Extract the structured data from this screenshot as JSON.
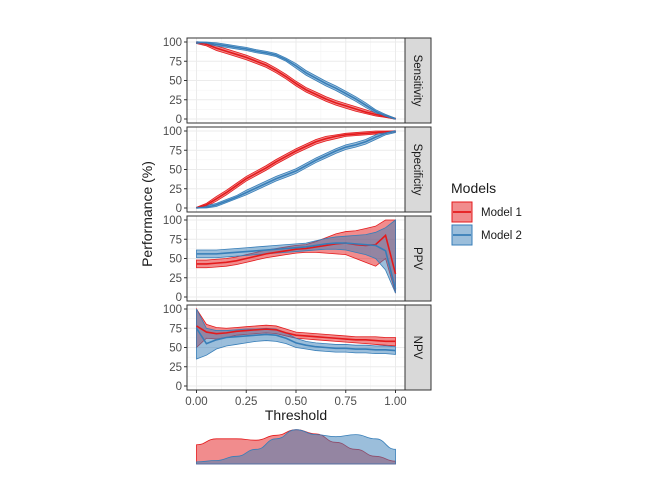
{
  "chart_data": {
    "type": "line",
    "xlabel": "Threshold",
    "ylabel": "Performance (%)",
    "xlim": [
      0,
      1
    ],
    "ylim": [
      0,
      100
    ],
    "x_ticks": [
      "0.00",
      "0.25",
      "0.50",
      "0.75",
      "1.00"
    ],
    "y_ticks": [
      "0",
      "25",
      "50",
      "75",
      "100"
    ],
    "legend": {
      "title": "Models",
      "entries": [
        {
          "name": "Model 1",
          "color": "#e41a1c"
        },
        {
          "name": "Model 2",
          "color": "#377eb8"
        }
      ]
    },
    "x": [
      0,
      0.05,
      0.1,
      0.15,
      0.2,
      0.25,
      0.3,
      0.35,
      0.4,
      0.45,
      0.5,
      0.55,
      0.6,
      0.65,
      0.7,
      0.75,
      0.8,
      0.85,
      0.9,
      0.95,
      1.0
    ],
    "panels": [
      {
        "name": "Sensitivity",
        "series": [
          {
            "name": "Model 1",
            "values": [
              100,
              97,
              92,
              88,
              84,
              80,
              75,
              70,
              63,
              55,
              46,
              38,
              32,
              26,
              21,
              17,
              13,
              9,
              6,
              3,
              0
            ],
            "lower": [
              98,
              95,
              89,
              85,
              81,
              77,
              72,
              67,
              60,
              52,
              43,
              35,
              29,
              23,
              18,
              14,
              10,
              7,
              4,
              2,
              0
            ],
            "upper": [
              100,
              99,
              95,
              91,
              87,
              83,
              78,
              73,
              66,
              58,
              49,
              41,
              35,
              29,
              24,
              20,
              16,
              12,
              8,
              5,
              1
            ]
          },
          {
            "name": "Model 2",
            "values": [
              100,
              99,
              97,
              95,
              93,
              91,
              88,
              86,
              83,
              77,
              69,
              60,
              53,
              46,
              40,
              33,
              26,
              18,
              10,
              4,
              0
            ],
            "lower": [
              98,
              97,
              95,
              93,
              91,
              89,
              86,
              84,
              81,
              75,
              66,
              57,
              50,
              43,
              37,
              30,
              23,
              15,
              8,
              3,
              0
            ],
            "upper": [
              100,
              100,
              99,
              97,
              95,
              93,
              90,
              88,
              85,
              79,
              72,
              63,
              56,
              49,
              43,
              36,
              29,
              21,
              12,
              6,
              1
            ]
          }
        ]
      },
      {
        "name": "Specificity",
        "series": [
          {
            "name": "Model 1",
            "values": [
              0,
              4,
              12,
              20,
              29,
              38,
              45,
              52,
              60,
              67,
              74,
              80,
              86,
              90,
              93,
              95,
              96,
              97,
              98,
              99,
              100
            ],
            "lower": [
              0,
              2,
              9,
              17,
              26,
              35,
              42,
              49,
              57,
              64,
              71,
              77,
              83,
              87,
              90,
              93,
              94,
              95,
              96,
              97,
              99
            ],
            "upper": [
              1,
              6,
              15,
              23,
              32,
              41,
              48,
              55,
              63,
              70,
              77,
              83,
              89,
              93,
              95,
              97,
              98,
              99,
              100,
              100,
              100
            ]
          },
          {
            "name": "Model 2",
            "values": [
              0,
              1,
              4,
              9,
              14,
              20,
              26,
              32,
              38,
              43,
              48,
              55,
              62,
              68,
              74,
              79,
              82,
              86,
              92,
              97,
              100
            ],
            "lower": [
              0,
              0,
              2,
              7,
              12,
              17,
              23,
              29,
              35,
              40,
              45,
              52,
              59,
              65,
              71,
              76,
              79,
              83,
              89,
              95,
              98
            ],
            "upper": [
              1,
              3,
              6,
              11,
              16,
              23,
              29,
              35,
              41,
              46,
              51,
              58,
              65,
              71,
              77,
              82,
              85,
              89,
              95,
              99,
              100
            ]
          }
        ]
      },
      {
        "name": "PPV",
        "series": [
          {
            "name": "Model 1",
            "values": [
              43,
              43,
              44,
              45,
              47,
              50,
              53,
              56,
              58,
              60,
              62,
              63,
              65,
              67,
              69,
              70,
              68,
              67,
              68,
              80,
              30
            ],
            "lower": [
              38,
              38,
              39,
              40,
              42,
              45,
              48,
              51,
              53,
              55,
              57,
              58,
              58,
              57,
              56,
              55,
              50,
              45,
              40,
              50,
              5
            ],
            "upper": [
              48,
              48,
              49,
              50,
              52,
              55,
              58,
              61,
              63,
              65,
              67,
              68,
              72,
              77,
              82,
              85,
              86,
              89,
              92,
              100,
              100
            ]
          },
          {
            "name": "Model 2",
            "values": [
              56,
              56,
              56,
              57,
              58,
              59,
              60,
              61,
              62,
              63,
              64,
              65,
              67,
              69,
              70,
              70,
              69,
              68,
              67,
              60,
              10
            ],
            "lower": [
              51,
              51,
              51,
              52,
              53,
              54,
              55,
              56,
              57,
              58,
              59,
              60,
              61,
              62,
              62,
              61,
              58,
              55,
              50,
              35,
              5
            ],
            "upper": [
              61,
              61,
              61,
              62,
              63,
              64,
              65,
              66,
              67,
              68,
              69,
              70,
              73,
              76,
              78,
              79,
              80,
              81,
              84,
              90,
              100
            ]
          }
        ]
      },
      {
        "name": "NPV",
        "series": [
          {
            "name": "Model 1",
            "values": [
              78,
              70,
              68,
              69,
              71,
              72,
              73,
              74,
              73,
              69,
              66,
              65,
              64,
              63,
              62,
              61,
              60,
              60,
              59,
              58,
              58
            ],
            "lower": [
              50,
              62,
              61,
              63,
              66,
              67,
              68,
              69,
              68,
              65,
              62,
              61,
              60,
              59,
              58,
              57,
              56,
              55,
              54,
              53,
              52
            ],
            "upper": [
              100,
              80,
              76,
              75,
              76,
              77,
              78,
              79,
              78,
              74,
              70,
              69,
              68,
              67,
              66,
              65,
              64,
              64,
              64,
              63,
              63
            ]
          },
          {
            "name": "Model 2",
            "values": [
              75,
              55,
              60,
              63,
              64,
              65,
              66,
              67,
              66,
              62,
              56,
              53,
              51,
              50,
              49,
              49,
              48,
              48,
              47,
              47,
              46
            ],
            "lower": [
              35,
              40,
              48,
              52,
              54,
              56,
              58,
              59,
              58,
              55,
              50,
              48,
              46,
              45,
              44,
              44,
              43,
              43,
              42,
              42,
              41
            ],
            "upper": [
              100,
              75,
              72,
              72,
              73,
              74,
              74,
              75,
              74,
              69,
              62,
              58,
              56,
              55,
              54,
              54,
              53,
              53,
              52,
              52,
              51
            ]
          }
        ]
      }
    ],
    "density": {
      "x": [
        0,
        0.1,
        0.2,
        0.3,
        0.4,
        0.5,
        0.6,
        0.7,
        0.8,
        0.9,
        1.0
      ],
      "series": [
        {
          "name": "Model 1",
          "values": [
            0.55,
            0.72,
            0.72,
            0.68,
            0.82,
            0.98,
            0.86,
            0.62,
            0.42,
            0.22,
            0.08
          ]
        },
        {
          "name": "Model 2",
          "values": [
            0.06,
            0.1,
            0.22,
            0.42,
            0.72,
            0.98,
            0.84,
            0.78,
            0.84,
            0.72,
            0.42
          ]
        }
      ]
    }
  }
}
